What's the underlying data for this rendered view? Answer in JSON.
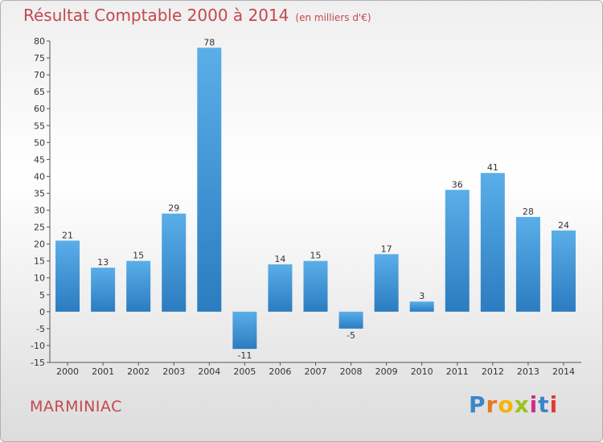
{
  "header": {
    "title": "Résultat Comptable 2000 à 2014",
    "subtitle": "(en milliers d'€)"
  },
  "footer": {
    "town": "MARMINIAC",
    "logo": [
      "P",
      "r",
      "o",
      "x",
      "i",
      "t",
      "i"
    ]
  },
  "colors": {
    "bar_light": "#5aaee8",
    "bar_dark": "#2b7cc0",
    "title": "#c4484e"
  },
  "chart_data": {
    "type": "bar",
    "title": "Résultat Comptable 2000 à 2014",
    "xlabel": "",
    "ylabel": "",
    "ylim": [
      -15,
      80
    ],
    "yticks": [
      -15,
      -10,
      -5,
      0,
      5,
      10,
      15,
      20,
      25,
      30,
      35,
      40,
      45,
      50,
      55,
      60,
      65,
      70,
      75,
      80
    ],
    "categories": [
      "2000",
      "2001",
      "2002",
      "2003",
      "2004",
      "2005",
      "2006",
      "2007",
      "2008",
      "2009",
      "2010",
      "2011",
      "2012",
      "2013",
      "2014"
    ],
    "values": [
      21,
      13,
      15,
      29,
      78,
      -11,
      14,
      15,
      -5,
      17,
      3,
      36,
      41,
      28,
      24
    ],
    "labels": [
      "21",
      "13",
      "15",
      "29",
      "78",
      "-11",
      "14",
      "15",
      "-5",
      "17",
      "3",
      "36",
      "41",
      "28",
      "24"
    ],
    "grid": false,
    "legend": "none"
  }
}
